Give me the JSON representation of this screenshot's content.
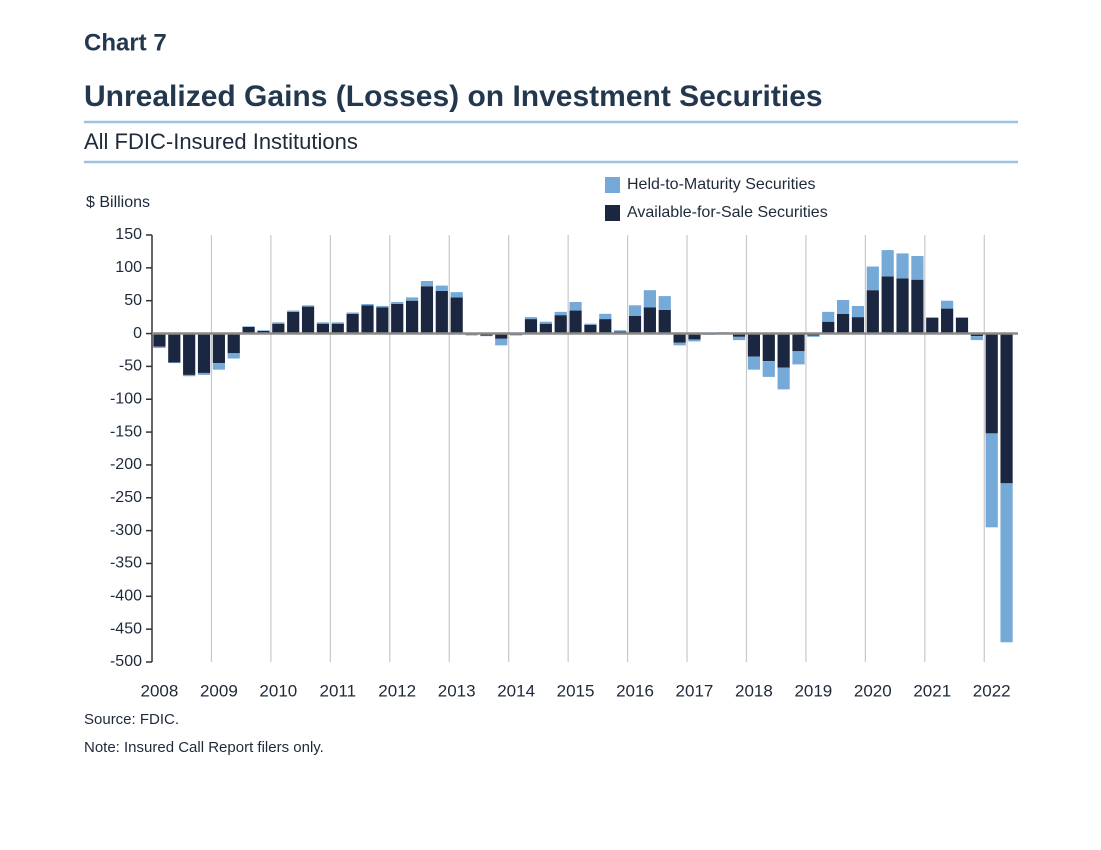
{
  "chart_data": {
    "type": "stacked_bar",
    "chart_label": "Chart 7",
    "title": "Unrealized Gains (Losses) on Investment Securities",
    "subtitle": "All FDIC-Insured Institutions",
    "y_label": "$ Billions",
    "source": "Source: FDIC.",
    "note": "Note: Insured Call Report filers only.",
    "legend": "top",
    "categories": [
      "2008",
      null,
      null,
      null,
      "2009",
      null,
      null,
      null,
      "2010",
      null,
      null,
      null,
      "2011",
      null,
      null,
      null,
      "2012",
      null,
      null,
      null,
      "2013",
      null,
      null,
      null,
      "2014",
      null,
      null,
      null,
      "2015",
      null,
      null,
      null,
      "2016",
      null,
      null,
      null,
      "2017",
      null,
      null,
      null,
      "2018",
      null,
      null,
      null,
      "2019",
      null,
      null,
      null,
      "2020",
      null,
      null,
      null,
      "2021",
      null,
      null,
      null,
      "2022",
      null
    ],
    "series": [
      {
        "name": "Held-to-Maturity Securities",
        "color": "#74a9d8",
        "values": [
          -2,
          -1,
          -2,
          -3,
          -10,
          -8,
          1,
          1,
          2,
          2,
          2,
          2,
          2,
          2,
          2,
          2,
          3,
          5,
          8,
          8,
          8,
          -1,
          -1,
          -10,
          -1,
          3,
          3,
          5,
          13,
          2,
          8,
          2,
          16,
          26,
          21,
          -4,
          -3,
          -1,
          1,
          -5,
          -20,
          -24,
          -33,
          -20,
          -2,
          15,
          21,
          17,
          36,
          40,
          38,
          36,
          1,
          12,
          1,
          -6,
          -143,
          -242
        ]
      },
      {
        "name": "Available-for-Sale Securities",
        "color": "#1b2740",
        "values": [
          -20,
          -44,
          -63,
          -60,
          -45,
          -30,
          10,
          4,
          15,
          33,
          41,
          15,
          15,
          30,
          43,
          40,
          45,
          50,
          72,
          65,
          55,
          -2,
          -3,
          -8,
          -2,
          22,
          15,
          28,
          35,
          13,
          22,
          3,
          27,
          40,
          36,
          -14,
          -9,
          -1,
          1,
          -5,
          -35,
          -42,
          -52,
          -27,
          -3,
          18,
          30,
          25,
          66,
          87,
          84,
          82,
          24,
          38,
          24,
          -4,
          -152,
          -228
        ]
      }
    ],
    "ylim": [
      -500,
      150
    ],
    "yticks": [
      150,
      100,
      50,
      0,
      -50,
      -100,
      -150,
      -200,
      -250,
      -300,
      -350,
      -400,
      -450,
      -500
    ]
  }
}
